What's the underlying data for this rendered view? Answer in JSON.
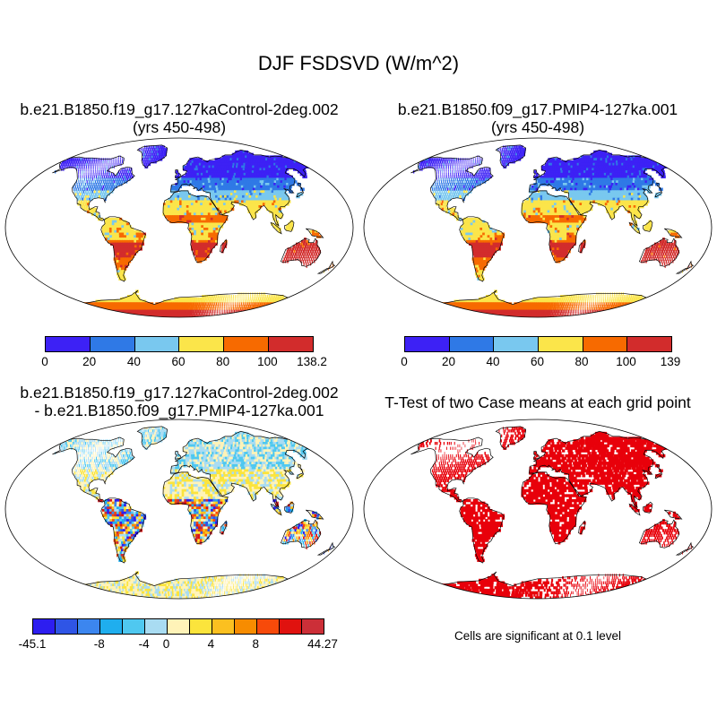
{
  "title": "DJF FSDSVD (W/m^2)",
  "panels": [
    {
      "title_line1": "b.e21.B1850.f19_g17.127kaControl-2deg.002",
      "title_line2": "(yrs 450-498)",
      "colorbar": {
        "colors": [
          "#3d21f5",
          "#2f79e6",
          "#79c8ef",
          "#fbe54a",
          "#f76a00",
          "#d22c2c"
        ],
        "labels": [
          "0",
          "20",
          "40",
          "60",
          "80",
          "100",
          "138.2"
        ]
      }
    },
    {
      "title_line1": "b.e21.B1850.f09_g17.PMIP4-127ka.001",
      "title_line2": "(yrs 450-498)",
      "colorbar": {
        "colors": [
          "#3d21f5",
          "#2f79e6",
          "#79c8ef",
          "#fbe54a",
          "#f76a00",
          "#d22c2c"
        ],
        "labels": [
          "0",
          "20",
          "40",
          "60",
          "80",
          "100",
          "139"
        ]
      }
    },
    {
      "title_line1": "b.e21.B1850.f19_g17.127kaControl-2deg.002",
      "title_line2": "- b.e21.B1850.f09_g17.PMIP4-127ka.001",
      "colorbar": {
        "colors": [
          "#2d1ef0",
          "#2f55e6",
          "#3c86ef",
          "#1faeee",
          "#4fc8f0",
          "#a9dcf2",
          "#fff3b8",
          "#fbe43c",
          "#fbc020",
          "#f78c00",
          "#f74a0a",
          "#e0120f",
          "#cc2f38"
        ],
        "labels": [
          "-45.1",
          "-8",
          "-4",
          "0",
          "4",
          "8",
          "44.27"
        ]
      }
    },
    {
      "title_line1": "T-Test of two Case means at each grid point",
      "note": "Cells are significant at 0.1 level",
      "significant_color": "#e8000b"
    }
  ]
}
